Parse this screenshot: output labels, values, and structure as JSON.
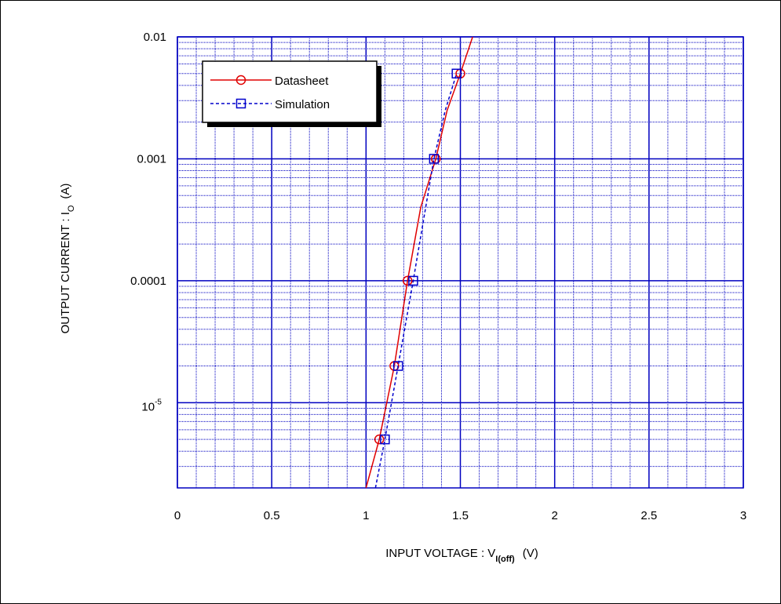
{
  "chart_data": {
    "type": "line",
    "xlabel": {
      "main": "INPUT VOLTAGE : V",
      "sub": "I(off)",
      "tail": "(V)"
    },
    "ylabel": {
      "main": "OUTPUT  CURRENT : I",
      "sub": "O",
      "tail": "(A)"
    },
    "xlim": [
      0,
      3
    ],
    "xticks": [
      0,
      0.5,
      1,
      1.5,
      2,
      2.5,
      3
    ],
    "ylim": [
      2e-06,
      0.01
    ],
    "yticks": [
      {
        "value": 1e-05,
        "label": "10",
        "sup": "-5"
      },
      0.0001,
      0.001,
      0.01
    ],
    "log_y": true,
    "grid": true,
    "legend": "upper-left",
    "series": [
      {
        "name": "Datasheet",
        "color": "#e00000",
        "marker": "circle",
        "dash": false,
        "x": [
          1.0,
          1.07,
          1.15,
          1.22,
          1.29,
          1.37,
          1.43,
          1.5,
          1.565
        ],
        "values": [
          2e-06,
          5e-06,
          2e-05,
          0.0001,
          0.0004,
          0.001,
          0.0025,
          0.005,
          0.01
        ],
        "marker_x": [
          1.07,
          1.15,
          1.22,
          1.37,
          1.5
        ],
        "marker_values": [
          5e-06,
          2e-05,
          0.0001,
          0.001,
          0.005
        ]
      },
      {
        "name": "Simulation",
        "color": "#0000cc",
        "marker": "square",
        "dash": true,
        "x": [
          1.05,
          1.1,
          1.17,
          1.25,
          1.36,
          1.42,
          1.48
        ],
        "values": [
          2e-06,
          5e-06,
          2e-05,
          0.0001,
          0.001,
          0.0025,
          0.005
        ],
        "marker_x": [
          1.1,
          1.17,
          1.25,
          1.36,
          1.48
        ],
        "marker_values": [
          5e-06,
          2e-05,
          0.0001,
          0.001,
          0.005
        ]
      }
    ]
  }
}
